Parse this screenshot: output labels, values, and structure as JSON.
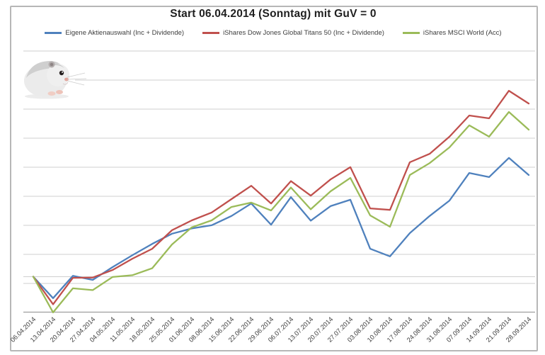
{
  "title": "Start 06.04.2014 (Sonntag) mit GuV = 0",
  "legend": [
    {
      "label": "Eigene Aktienauswahl (Inc + Dividende)",
      "color": "#4F81BD"
    },
    {
      "label": "iShares Dow Jones Global Titans 50 (Inc + Dividende)",
      "color": "#C0504D"
    },
    {
      "label": "iShares MSCI World (Acc)",
      "color": "#9BBB59"
    }
  ],
  "decoration": {
    "hamster_photo": "white dwarf hamster photo, top-left above plot"
  },
  "colors": {
    "grid": "#CFCFCF",
    "zero_line": "#CFCFCF",
    "axis": "#9E9E9E",
    "frame": "#B7B7B7",
    "title_text": "#1F1F1F",
    "tick_text": "#404040"
  },
  "chart_data": {
    "type": "line",
    "title": "Start 06.04.2014 (Sonntag) mit GuV = 0",
    "xlabel": "",
    "ylabel": "",
    "grid": true,
    "legend_position": "top",
    "x_tick_rotation": -45,
    "y_axis": {
      "labels_visible": false,
      "unit": "gridline steps (values estimated from unlabeled horizontal gridlines)",
      "zero_reference": "start value, GuV = 0",
      "min": -1.25,
      "max": 7.8
    },
    "categories": [
      "06.04.2014",
      "13.04.2014",
      "20.04.2014",
      "27.04.2014",
      "04.05.2014",
      "11.05.2014",
      "18.05.2014",
      "25.05.2014",
      "01.06.2014",
      "08.06.2014",
      "15.06.2014",
      "22.06.2014",
      "29.06.2014",
      "06.07.2014",
      "13.07.2014",
      "20.07.2014",
      "27.07.2014",
      "03.08.2014",
      "10.08.2014",
      "17.08.2014",
      "24.08.2014",
      "31.08.2014",
      "07.09.2014",
      "14.09.2014",
      "21.09.2014",
      "28.09.2014"
    ],
    "series": [
      {
        "name": "Eigene Aktienauswahl (Inc + Dividende)",
        "color": "#4F81BD",
        "values": [
          0,
          -0.74,
          0.03,
          -0.11,
          0.33,
          0.74,
          1.13,
          1.48,
          1.66,
          1.77,
          2.09,
          2.52,
          1.79,
          2.74,
          1.93,
          2.43,
          2.65,
          0.96,
          0.7,
          1.5,
          2.09,
          2.62,
          3.57,
          3.43,
          4.09,
          3.5
        ]
      },
      {
        "name": "iShares Dow Jones Global Titans 50 (Inc + Dividende)",
        "color": "#C0504D",
        "values": [
          0,
          -0.95,
          -0.04,
          -0.03,
          0.23,
          0.62,
          0.96,
          1.6,
          1.94,
          2.21,
          2.67,
          3.13,
          2.52,
          3.29,
          2.79,
          3.35,
          3.77,
          2.35,
          2.3,
          3.94,
          4.23,
          4.82,
          5.55,
          5.45,
          6.4,
          5.96
        ]
      },
      {
        "name": "iShares MSCI World (Acc)",
        "color": "#9BBB59",
        "values": [
          0,
          -1.23,
          -0.4,
          -0.46,
          -0.01,
          0.05,
          0.29,
          1.11,
          1.7,
          1.94,
          2.4,
          2.55,
          2.28,
          3.07,
          2.32,
          2.94,
          3.4,
          2.11,
          1.72,
          3.5,
          3.91,
          4.45,
          5.21,
          4.82,
          5.67,
          5.06
        ]
      }
    ]
  }
}
